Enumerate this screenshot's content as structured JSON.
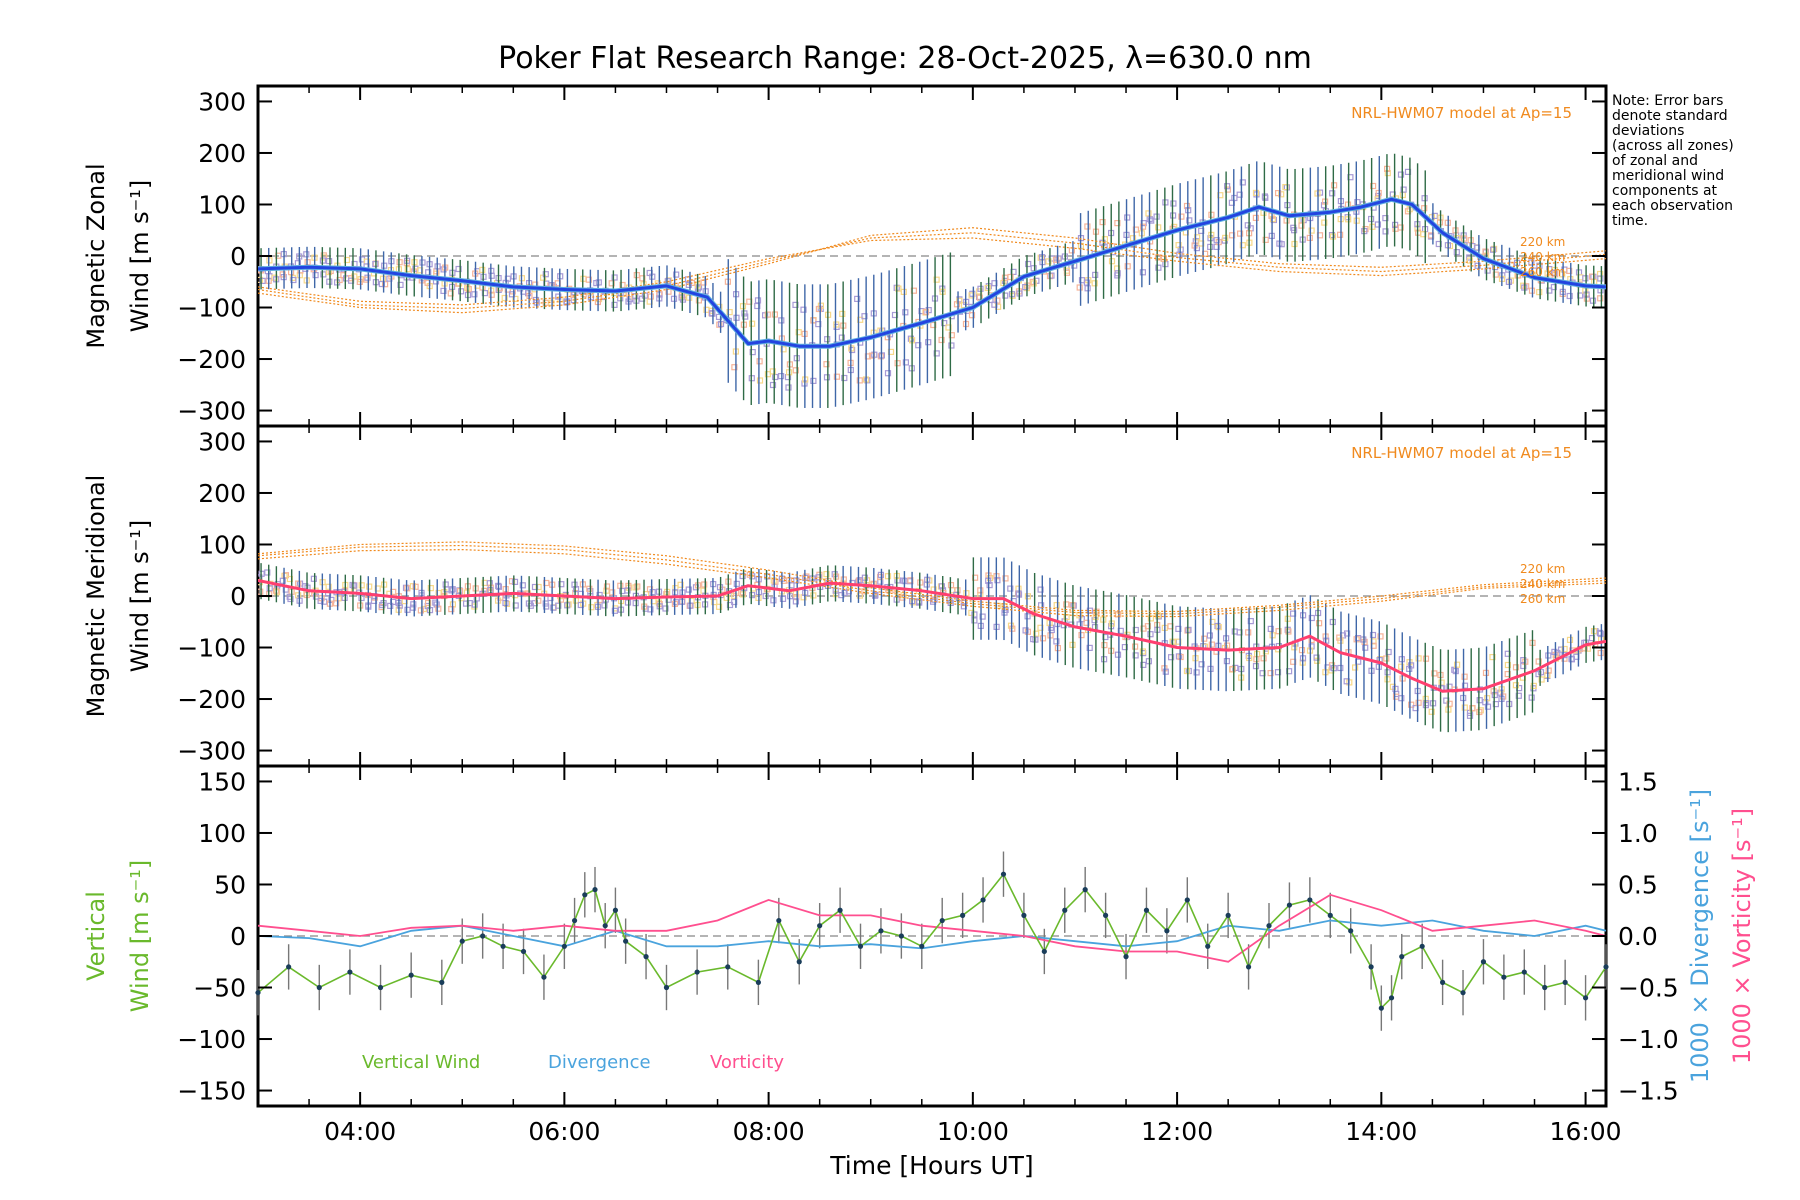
{
  "title": "Poker Flat Research Range: 28-Oct-2025, λ=630.0 nm",
  "note": [
    "Note: Error bars",
    "denote standard",
    "deviations",
    "(across all zones)",
    "of zonal and",
    "meridional wind",
    "components at",
    "each observation",
    "time."
  ],
  "colors": {
    "zonal": "#2344e0",
    "zonal_fit": "#5fb0e0",
    "meridional": "#ff3f6f",
    "model": "#f08a1e",
    "vertical": "#6ab92c",
    "divergence": "#4aa3dd",
    "vorticity": "#ff4f8f",
    "scatter": "#a79bd6",
    "errorbar": "#2f6b46",
    "yellow": "#f7d98a",
    "salmon": "#f6b49a"
  },
  "chart_data": [
    {
      "type": "line",
      "panel": "zonal",
      "ylabel": [
        "Magnetic Zonal",
        "Wind [m s⁻¹]"
      ],
      "yticks": [
        "300",
        "200",
        "100",
        "0",
        "−100",
        "−200",
        "−300"
      ],
      "ylim": [
        -330,
        330
      ],
      "xlim": [
        3.0,
        16.2
      ],
      "model_label": "NRL-HWM07 model at Ap=15",
      "model_altitudes": [
        "220 km",
        "240 km",
        "260 km"
      ],
      "series": [
        {
          "name": "Zonal wind",
          "x": [
            3.0,
            3.5,
            4.0,
            4.5,
            5.0,
            5.5,
            6.0,
            6.5,
            7.0,
            7.4,
            7.8,
            8.0,
            8.3,
            8.6,
            9.0,
            9.5,
            10.0,
            10.5,
            11.0,
            11.5,
            12.0,
            12.5,
            12.8,
            13.1,
            13.5,
            13.8,
            14.1,
            14.3,
            14.6,
            15.0,
            15.5,
            16.0,
            16.2
          ],
          "values": [
            -25,
            -22,
            -25,
            -38,
            -48,
            -60,
            -65,
            -68,
            -58,
            -80,
            -170,
            -165,
            -175,
            -175,
            -158,
            -130,
            -100,
            -40,
            -10,
            20,
            50,
            75,
            95,
            78,
            85,
            95,
            110,
            100,
            45,
            -5,
            -42,
            -58,
            -60
          ]
        },
        {
          "name": "NRL-HWM07 220 km",
          "x": [
            3.0,
            4.0,
            5.0,
            6.0,
            7.0,
            8.0,
            9.0,
            10.0,
            11.0,
            12.0,
            13.0,
            14.0,
            15.0,
            16.2
          ],
          "values": [
            -60,
            -88,
            -95,
            -80,
            -50,
            -5,
            30,
            35,
            15,
            -10,
            -30,
            -38,
            -25,
            -5
          ]
        },
        {
          "name": "NRL-HWM07 240 km",
          "x": [
            3.0,
            4.0,
            5.0,
            6.0,
            7.0,
            8.0,
            9.0,
            10.0,
            11.0,
            12.0,
            13.0,
            14.0,
            15.0,
            16.2
          ],
          "values": [
            -65,
            -95,
            -102,
            -88,
            -58,
            -10,
            35,
            45,
            25,
            -3,
            -22,
            -30,
            -18,
            3
          ]
        },
        {
          "name": "NRL-HWM07 260 km",
          "x": [
            3.0,
            4.0,
            5.0,
            6.0,
            7.0,
            8.0,
            9.0,
            10.0,
            11.0,
            12.0,
            13.0,
            14.0,
            15.0,
            16.2
          ],
          "values": [
            -72,
            -100,
            -110,
            -95,
            -65,
            -15,
            40,
            55,
            35,
            5,
            -15,
            -22,
            -10,
            10
          ]
        }
      ]
    },
    {
      "type": "line",
      "panel": "meridional",
      "ylabel": [
        "Magnetic Meridional",
        "Wind [m s⁻¹]"
      ],
      "yticks": [
        "300",
        "200",
        "100",
        "0",
        "−100",
        "−200",
        "−300"
      ],
      "ylim": [
        -330,
        330
      ],
      "xlim": [
        3.0,
        16.2
      ],
      "model_label": "NRL-HWM07 model at Ap=15",
      "model_altitudes": [
        "220 km",
        "240 km",
        "260 km"
      ],
      "series": [
        {
          "name": "Meridional wind",
          "x": [
            3.0,
            3.5,
            4.0,
            4.5,
            5.0,
            5.5,
            6.0,
            6.5,
            7.0,
            7.5,
            7.8,
            8.2,
            8.6,
            9.0,
            9.5,
            10.0,
            10.3,
            10.6,
            11.0,
            11.5,
            12.0,
            12.5,
            13.0,
            13.3,
            13.6,
            14.0,
            14.3,
            14.6,
            15.0,
            15.5,
            16.0,
            16.2
          ],
          "values": [
            30,
            10,
            5,
            -5,
            0,
            5,
            0,
            -5,
            -2,
            0,
            20,
            10,
            25,
            20,
            10,
            -5,
            -5,
            -35,
            -60,
            -78,
            -100,
            -105,
            -100,
            -78,
            -110,
            -130,
            -160,
            -185,
            -180,
            -145,
            -95,
            -88
          ]
        },
        {
          "name": "NRL-HWM07 220 km",
          "x": [
            3.0,
            4.0,
            5.0,
            6.0,
            7.0,
            8.0,
            9.0,
            10.0,
            11.0,
            12.0,
            13.0,
            14.0,
            15.0,
            16.2
          ],
          "values": [
            72,
            88,
            90,
            82,
            62,
            35,
            5,
            -20,
            -38,
            -40,
            -28,
            -10,
            15,
            25
          ]
        },
        {
          "name": "NRL-HWM07 240 km",
          "x": [
            3.0,
            4.0,
            5.0,
            6.0,
            7.0,
            8.0,
            9.0,
            10.0,
            11.0,
            12.0,
            13.0,
            14.0,
            15.0,
            16.2
          ],
          "values": [
            78,
            95,
            98,
            90,
            70,
            42,
            10,
            -15,
            -32,
            -35,
            -22,
            -5,
            18,
            30
          ]
        },
        {
          "name": "NRL-HWM07 260 km",
          "x": [
            3.0,
            4.0,
            5.0,
            6.0,
            7.0,
            8.0,
            9.0,
            10.0,
            11.0,
            12.0,
            13.0,
            14.0,
            15.0,
            16.2
          ],
          "values": [
            82,
            100,
            105,
            97,
            78,
            50,
            16,
            -10,
            -28,
            -30,
            -18,
            0,
            22,
            35
          ]
        }
      ]
    },
    {
      "type": "line",
      "panel": "vertical",
      "ylabel": [
        "Vertical",
        "Wind [m s⁻¹]"
      ],
      "ylabel_right_div": "1000 × Divergence [s⁻¹]",
      "ylabel_right_vort": "1000 × Vorticity [s⁻¹]",
      "yticks": [
        "150",
        "100",
        "50",
        "0",
        "−50",
        "−100",
        "−150"
      ],
      "yticks_right": [
        "1.5",
        "1.0",
        "0.5",
        "0.0",
        "−0.5",
        "−1.0",
        "−1.5"
      ],
      "ylim": [
        -165,
        165
      ],
      "ylim_right": [
        -1.65,
        1.65
      ],
      "xlim": [
        3.0,
        16.2
      ],
      "xticks": [
        "04:00",
        "06:00",
        "08:00",
        "10:00",
        "12:00",
        "14:00",
        "16:00"
      ],
      "xlabel": "Time [Hours UT]",
      "legend": [
        "Vertical Wind",
        "Divergence",
        "Vorticity"
      ],
      "series": [
        {
          "name": "Vertical Wind",
          "x": [
            3.0,
            3.3,
            3.6,
            3.9,
            4.2,
            4.5,
            4.8,
            5.0,
            5.2,
            5.4,
            5.6,
            5.8,
            6.0,
            6.1,
            6.2,
            6.3,
            6.4,
            6.5,
            6.6,
            6.8,
            7.0,
            7.3,
            7.6,
            7.9,
            8.1,
            8.3,
            8.5,
            8.7,
            8.9,
            9.1,
            9.3,
            9.5,
            9.7,
            9.9,
            10.1,
            10.3,
            10.5,
            10.7,
            10.9,
            11.1,
            11.3,
            11.5,
            11.7,
            11.9,
            12.1,
            12.3,
            12.5,
            12.7,
            12.9,
            13.1,
            13.3,
            13.5,
            13.7,
            13.9,
            14.0,
            14.1,
            14.2,
            14.4,
            14.6,
            14.8,
            15.0,
            15.2,
            15.4,
            15.6,
            15.8,
            16.0,
            16.2
          ],
          "values": [
            -55,
            -30,
            -50,
            -35,
            -50,
            -38,
            -45,
            -5,
            0,
            -10,
            -15,
            -40,
            -10,
            15,
            40,
            45,
            10,
            25,
            -5,
            -20,
            -50,
            -35,
            -30,
            -45,
            15,
            -25,
            10,
            25,
            -10,
            5,
            0,
            -10,
            15,
            20,
            35,
            60,
            20,
            -15,
            25,
            45,
            20,
            -20,
            25,
            5,
            35,
            -10,
            20,
            -30,
            10,
            30,
            35,
            20,
            5,
            -30,
            -70,
            -60,
            -20,
            -10,
            -45,
            -55,
            -25,
            -40,
            -35,
            -50,
            -45,
            -60,
            -30
          ]
        },
        {
          "name": "Divergence",
          "x": [
            3.0,
            3.5,
            4.0,
            4.5,
            5.0,
            5.5,
            6.0,
            6.5,
            7.0,
            7.5,
            8.0,
            8.5,
            9.0,
            9.5,
            10.0,
            10.5,
            11.0,
            11.5,
            12.0,
            12.5,
            13.0,
            13.5,
            14.0,
            14.5,
            15.0,
            15.5,
            16.0,
            16.2
          ],
          "values": [
            0.0,
            -0.02,
            -0.1,
            0.05,
            0.1,
            0.0,
            -0.1,
            0.05,
            -0.1,
            -0.1,
            -0.05,
            -0.1,
            -0.08,
            -0.12,
            -0.05,
            0.0,
            -0.05,
            -0.1,
            -0.05,
            0.1,
            0.05,
            0.15,
            0.1,
            0.15,
            0.05,
            0.0,
            0.1,
            0.05
          ]
        },
        {
          "name": "Vorticity",
          "x": [
            3.0,
            3.5,
            4.0,
            4.5,
            5.0,
            5.5,
            6.0,
            6.5,
            7.0,
            7.5,
            8.0,
            8.5,
            9.0,
            9.5,
            10.0,
            10.5,
            11.0,
            11.5,
            12.0,
            12.5,
            13.0,
            13.5,
            14.0,
            14.5,
            15.0,
            15.5,
            16.0,
            16.2
          ],
          "values": [
            0.1,
            0.05,
            0.0,
            0.08,
            0.1,
            0.05,
            0.1,
            0.05,
            0.05,
            0.15,
            0.35,
            0.2,
            0.2,
            0.1,
            0.05,
            0.0,
            -0.1,
            -0.15,
            -0.15,
            -0.25,
            0.1,
            0.4,
            0.25,
            0.05,
            0.1,
            0.15,
            0.05,
            0.0
          ]
        }
      ]
    }
  ]
}
